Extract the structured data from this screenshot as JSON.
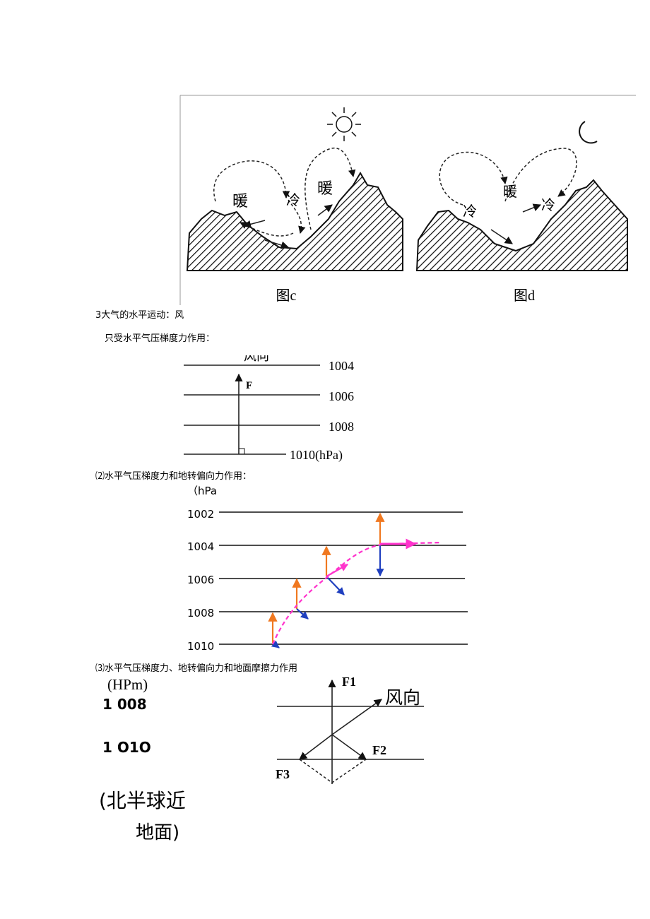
{
  "figure_cd": {
    "c": {
      "labels": [
        "暖",
        "冷",
        "暖"
      ],
      "caption": "图c"
    },
    "d": {
      "labels": [
        "冷",
        "暖",
        "冷"
      ],
      "caption": "图d"
    }
  },
  "section3": {
    "heading": "3大气的水平运动：风",
    "case1": {
      "title": "只受水平气压梯度力作用：",
      "wind_label": "风向",
      "force_label": "F",
      "isobars": [
        "1004",
        "1006",
        "1008",
        "1010(hPa)"
      ]
    },
    "case2": {
      "title": "⑵水平气压梯度力和地转偏向力作用：",
      "unit": "（hPa",
      "isobars": [
        "1002",
        "1004",
        "1006",
        "1008",
        "1010"
      ]
    },
    "case3": {
      "title": "⑶水平气压梯度力、地转偏向力和地面摩擦力作用",
      "unit": "(HPm)",
      "isobars": [
        "1 008",
        "1 O1O"
      ],
      "note": [
        "(北半球近",
        "地面)"
      ],
      "labels": {
        "f1": "F1",
        "wind": "风向",
        "f2": "F2",
        "f3": "F3"
      }
    }
  }
}
